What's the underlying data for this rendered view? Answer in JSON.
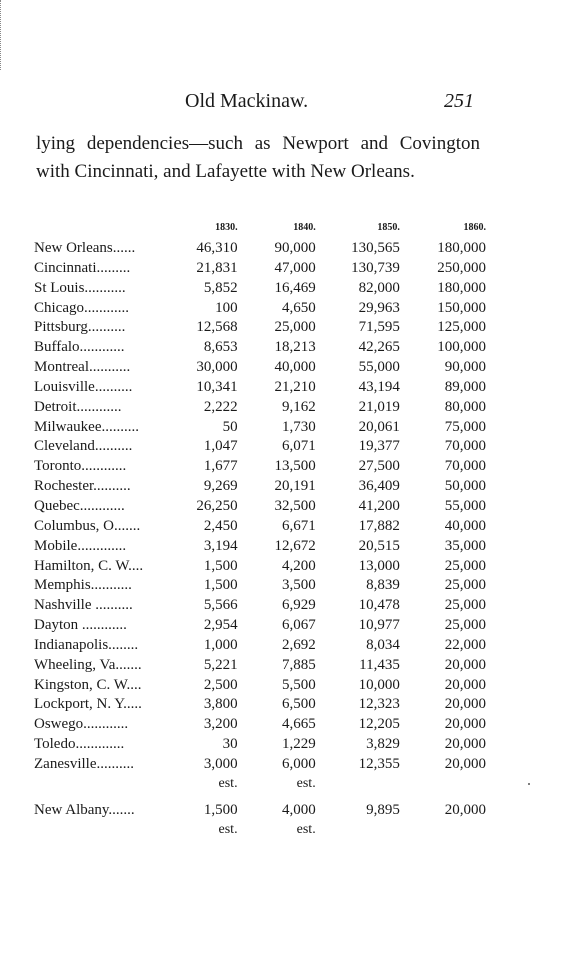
{
  "header": {
    "title": "Old Mackinaw.",
    "page_number": "251"
  },
  "intro_text": "lying dependencies—such as Newport and Covington with Cincinnati, and Lafayette with New Orleans.",
  "table": {
    "columns": [
      "1830.",
      "1840.",
      "1850.",
      "1860."
    ],
    "rows": [
      {
        "city": "New Orleans......",
        "v1830": "46,310",
        "v1840": "90,000",
        "v1850": "130,565",
        "v1860": "180,000"
      },
      {
        "city": "Cincinnati.........",
        "v1830": "21,831",
        "v1840": "47,000",
        "v1850": "130,739",
        "v1860": "250,000"
      },
      {
        "city": "St Louis...........",
        "v1830": "5,852",
        "v1840": "16,469",
        "v1850": "82,000",
        "v1860": "180,000"
      },
      {
        "city": "Chicago............",
        "v1830": "100",
        "v1840": "4,650",
        "v1850": "29,963",
        "v1860": "150,000"
      },
      {
        "city": "Pittsburg..........",
        "v1830": "12,568",
        "v1840": "25,000",
        "v1850": "71,595",
        "v1860": "125,000"
      },
      {
        "city": "Buffalo............",
        "v1830": "8,653",
        "v1840": "18,213",
        "v1850": "42,265",
        "v1860": "100,000"
      },
      {
        "city": "Montreal...........",
        "v1830": "30,000",
        "v1840": "40,000",
        "v1850": "55,000",
        "v1860": "90,000"
      },
      {
        "city": "Louisville..........",
        "v1830": "10,341",
        "v1840": "21,210",
        "v1850": "43,194",
        "v1860": "89,000"
      },
      {
        "city": "Detroit............",
        "v1830": "2,222",
        "v1840": "9,162",
        "v1850": "21,019",
        "v1860": "80,000"
      },
      {
        "city": "Milwaukee..........",
        "v1830": "",
        "v1840": "1,730",
        "v1850": "20,061",
        "v1860": "75,000"
      },
      {
        "city": "Cleveland..........",
        "v1830": "1,047",
        "v1840": "6,071",
        "v1850": "19,377",
        "v1860": "70,000"
      },
      {
        "city": "Toronto............",
        "v1830": "1,677",
        "v1840": "13,500",
        "v1850": "27,500",
        "v1860": "70,000"
      },
      {
        "city": "Rochester..........",
        "v1830": "9,269",
        "v1840": "20,191",
        "v1850": "36,409",
        "v1860": "50,000"
      },
      {
        "city": "Quebec............",
        "v1830": "26,250",
        "v1840": "32,500",
        "v1850": "41,200",
        "v1860": "55,000"
      },
      {
        "city": "Columbus, O.......",
        "v1830": "2,450",
        "v1840": "6,671",
        "v1850": "17,882",
        "v1860": "40,000"
      },
      {
        "city": "Mobile.............",
        "v1830": "3,194",
        "v1840": "12,672",
        "v1850": "20,515",
        "v1860": "35,000"
      },
      {
        "city": "Hamilton, C. W....",
        "v1830": "1,500",
        "v1840": "4,200",
        "v1850": "13,000",
        "v1860": "25,000"
      },
      {
        "city": "Memphis...........",
        "v1830": "1,500",
        "v1840": "3,500",
        "v1850": "8,839",
        "v1860": "25,000"
      },
      {
        "city": "Nashville ..........",
        "v1830": "5,566",
        "v1840": "6,929",
        "v1850": "10,478",
        "v1860": "25,000"
      },
      {
        "city": "Dayton ............",
        "v1830": "2,954",
        "v1840": "6,067",
        "v1850": "10,977",
        "v1860": "25,000"
      },
      {
        "city": "Indianapolis........",
        "v1830": "1,000",
        "v1840": "2,692",
        "v1850": "8,034",
        "v1860": "22,000"
      },
      {
        "city": "Wheeling, Va.......",
        "v1830": "5,221",
        "v1840": "7,885",
        "v1850": "11,435",
        "v1860": "20,000"
      },
      {
        "city": "Kingston, C. W....",
        "v1830": "2,500",
        "v1840": "5,500",
        "v1850": "10,000",
        "v1860": "20,000"
      },
      {
        "city": "Lockport, N. Y.....",
        "v1830": "3,800",
        "v1840": "6,500",
        "v1850": "12,323",
        "v1860": "20,000"
      },
      {
        "city": "Oswego............",
        "v1830": "3,200",
        "v1840": "4,665",
        "v1850": "12,205",
        "v1860": "20,000"
      },
      {
        "city": "Toledo.............",
        "v1830": "30",
        "v1840": "1,229",
        "v1850": "3,829",
        "v1860": "20,000"
      },
      {
        "city": "Zanesville..........",
        "v1830": "3,000",
        "v1840": "6,000",
        "v1850": "12,355",
        "v1860": "20,000"
      }
    ],
    "milwaukee_1830": "50",
    "zanesville_note": {
      "v1830": "est.",
      "v1840": "est."
    },
    "last_row": {
      "city": "New Albany.......",
      "v1830": "1,500",
      "v1840": "4,000",
      "v1850": "9,895",
      "v1860": "20,000"
    },
    "last_row_note": {
      "v1830": "est.",
      "v1840": "est."
    }
  }
}
